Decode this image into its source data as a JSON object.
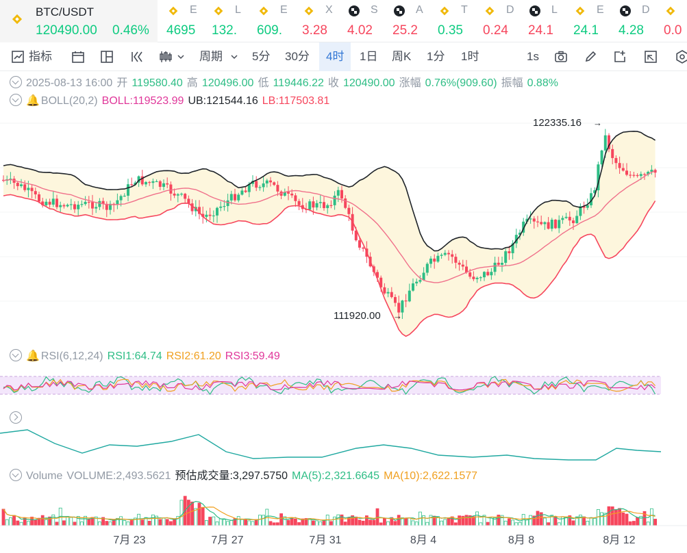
{
  "ticker": {
    "symbol": "BTC/USDT",
    "price": "120490.00",
    "change": "0.46%",
    "others": [
      {
        "icon": "bnb-coin-icon",
        "abbr": "E",
        "value": "4695",
        "dir": "up"
      },
      {
        "icon": "bnb-coin-icon",
        "abbr": "L",
        "value": "132.",
        "dir": "up"
      },
      {
        "icon": "bnb-coin-icon",
        "abbr": "E",
        "value": "609.",
        "dir": "up"
      },
      {
        "icon": "bnb-coin-icon",
        "abbr": "X",
        "value": "3.28",
        "dir": "down"
      },
      {
        "icon": "checker-coin-icon",
        "abbr": "S",
        "value": "4.02",
        "dir": "down"
      },
      {
        "icon": "checker-coin-icon",
        "abbr": "A",
        "value": "25.2",
        "dir": "down"
      },
      {
        "icon": "bnb-coin-icon",
        "abbr": "T",
        "value": "0.35",
        "dir": "up"
      },
      {
        "icon": "bnb-coin-icon",
        "abbr": "D",
        "value": "0.24",
        "dir": "down"
      },
      {
        "icon": "checker-coin-icon",
        "abbr": "L",
        "value": "24.1",
        "dir": "down"
      },
      {
        "icon": "bnb-coin-icon",
        "abbr": "E",
        "value": "24.1",
        "dir": "up"
      },
      {
        "icon": "checker-coin-icon",
        "abbr": "D",
        "value": "4.28",
        "dir": "up"
      },
      {
        "icon": "bnb-coin-icon",
        "abbr": "",
        "value": "0.0",
        "dir": "down"
      }
    ]
  },
  "toolbar": {
    "indicators": "指标",
    "period": "周期",
    "intervals": [
      "5分",
      "30分",
      "4时",
      "1日",
      "周K",
      "1分",
      "1时"
    ],
    "active_interval": "4时",
    "refresh": "1s"
  },
  "ohlc": {
    "date": "2025-08-13 16:00",
    "open_label": "开",
    "open": "119580.40",
    "high_label": "高",
    "high": "120496.00",
    "low_label": "低",
    "low": "119446.22",
    "close_label": "收",
    "close": "120490.00",
    "change_label": "涨幅",
    "change": "0.76%(909.60)",
    "amp_label": "振幅",
    "amp": "0.88%"
  },
  "boll": {
    "label": "BOLL(20,2)",
    "mid": "BOLL:119523.99",
    "ub": "UB:121544.16",
    "lb": "LB:117503.81"
  },
  "rsi": {
    "label": "RSI(6,12,24)",
    "rsi1": "RSI1:64.74",
    "rsi2": "RSI2:61.20",
    "rsi3": "RSI3:59.49"
  },
  "volume_legend": {
    "label": "Volume",
    "volume": "VOLUME:2,493.5621",
    "estimate": "预估成交量:3,297.5750",
    "ma5": "MA(5):2,321.6645",
    "ma10": "MA(10):2,622.1577"
  },
  "chart_data": {
    "type": "candlestick",
    "high_annotation": "122335.16",
    "low_annotation": "111920.00",
    "x_ticks": [
      "7月 23",
      "7月 27",
      "7月 31",
      "8月 4",
      "8月 8",
      "8月 12"
    ],
    "colors": {
      "up": "#2ebd85",
      "down": "#f6465d",
      "boll_upper": "#1e2329",
      "boll_mid": "#f0708a",
      "boll_lower": "#f6465d",
      "band_fill": "#fdf6dd"
    }
  }
}
